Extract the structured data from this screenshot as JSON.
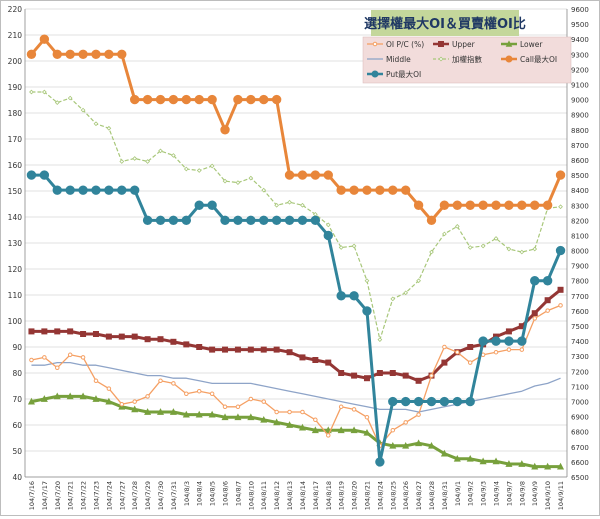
{
  "chart_data": {
    "type": "line",
    "title": "選擇權最大OI＆買賣權OI比",
    "legend_position": "top-right",
    "grid": true,
    "y_left": {
      "min": 40,
      "max": 220,
      "step": 10
    },
    "y_right": {
      "min": 6500,
      "max": 9600,
      "step": 100
    },
    "x": [
      "104/7/16",
      "104/7/17",
      "104/7/20",
      "104/7/21",
      "104/7/22",
      "104/7/23",
      "104/7/24",
      "104/7/27",
      "104/7/28",
      "104/7/29",
      "104/7/30",
      "104/7/31",
      "104/8/3",
      "104/8/4",
      "104/8/5",
      "104/8/6",
      "104/8/7",
      "104/8/10",
      "104/8/11",
      "104/8/12",
      "104/8/13",
      "104/8/14",
      "104/8/17",
      "104/8/18",
      "104/8/19",
      "104/8/20",
      "104/8/21",
      "104/8/24",
      "104/8/25",
      "104/8/26",
      "104/8/27",
      "104/8/28",
      "104/8/31",
      "104/9/1",
      "104/9/2",
      "104/9/3",
      "104/9/4",
      "104/9/7",
      "104/9/8",
      "104/9/9",
      "104/9/10",
      "104/9/11"
    ],
    "series": [
      {
        "name": "OI P/C (%)",
        "axis": "left",
        "color": "#F5A064",
        "marker": "circle-open",
        "values": [
          85,
          86,
          82,
          87,
          86,
          77,
          74,
          68,
          69,
          71,
          77,
          76,
          72,
          73,
          72,
          67,
          67,
          70,
          69,
          65,
          65,
          65,
          62,
          56,
          67,
          66,
          63,
          52,
          58,
          61,
          64,
          79,
          90,
          88,
          84,
          87,
          88,
          89,
          89,
          101,
          104,
          106
        ]
      },
      {
        "name": "Upper",
        "axis": "left",
        "color": "#943634",
        "marker": "square",
        "values": [
          96,
          96,
          96,
          96,
          95,
          95,
          94,
          94,
          94,
          93,
          93,
          92,
          91,
          90,
          89,
          89,
          89,
          89,
          89,
          89,
          88,
          86,
          85,
          84,
          80,
          79,
          78,
          80,
          80,
          79,
          77,
          79,
          84,
          88,
          90,
          91,
          94,
          96,
          98,
          103,
          108,
          112
        ]
      },
      {
        "name": "Lower",
        "axis": "left",
        "color": "#77A03C",
        "marker": "triangle",
        "values": [
          69,
          70,
          71,
          71,
          71,
          70,
          69,
          67,
          66,
          65,
          65,
          65,
          64,
          64,
          64,
          63,
          63,
          63,
          62,
          61,
          60,
          59,
          58,
          58,
          58,
          58,
          57,
          53,
          52,
          52,
          53,
          52,
          49,
          47,
          47,
          46,
          46,
          45,
          45,
          44,
          44,
          44
        ]
      },
      {
        "name": "Middle",
        "axis": "left",
        "color": "#8EA4C8",
        "marker": "none",
        "values": [
          83,
          83,
          84,
          84,
          83,
          83,
          82,
          81,
          80,
          79,
          79,
          78,
          78,
          77,
          76,
          76,
          76,
          76,
          75,
          74,
          73,
          72,
          71,
          70,
          69,
          68,
          67,
          66,
          66,
          66,
          65,
          66,
          67,
          68,
          69,
          70,
          71,
          72,
          73,
          75,
          76,
          78
        ]
      },
      {
        "name": "加權指數",
        "axis": "right",
        "color": "#A8C77A",
        "marker": "diamond-open",
        "dashed": true,
        "values": [
          9050,
          9050,
          8980,
          9010,
          8930,
          8840,
          8810,
          8590,
          8610,
          8590,
          8660,
          8630,
          8540,
          8530,
          8560,
          8460,
          8450,
          8480,
          8400,
          8300,
          8320,
          8300,
          8240,
          8170,
          8020,
          8030,
          7800,
          7410,
          7680,
          7720,
          7800,
          7990,
          8110,
          8160,
          8020,
          8030,
          8080,
          8010,
          7990,
          8010,
          8280,
          8290
        ]
      },
      {
        "name": "Call最大OI",
        "axis": "right",
        "color": "#E8863A",
        "marker": "circle",
        "values": [
          9300,
          9400,
          9300,
          9300,
          9300,
          9300,
          9300,
          9300,
          9000,
          9000,
          9000,
          9000,
          9000,
          9000,
          9000,
          8800,
          9000,
          9000,
          9000,
          9000,
          8500,
          8500,
          8500,
          8500,
          8400,
          8400,
          8400,
          8400,
          8400,
          8400,
          8300,
          8200,
          8300,
          8300,
          8300,
          8300,
          8300,
          8300,
          8300,
          8300,
          8300,
          8500
        ]
      },
      {
        "name": "Put最大OI",
        "axis": "right",
        "color": "#31849B",
        "marker": "circle",
        "values": [
          8500,
          8500,
          8400,
          8400,
          8400,
          8400,
          8400,
          8400,
          8400,
          8200,
          8200,
          8200,
          8200,
          8300,
          8300,
          8200,
          8200,
          8200,
          8200,
          8200,
          8200,
          8200,
          8200,
          8100,
          7700,
          7700,
          7600,
          6600,
          7000,
          7000,
          7000,
          7000,
          7000,
          7000,
          7000,
          7400,
          7400,
          7400,
          7400,
          7800,
          7800,
          8000
        ]
      }
    ]
  }
}
